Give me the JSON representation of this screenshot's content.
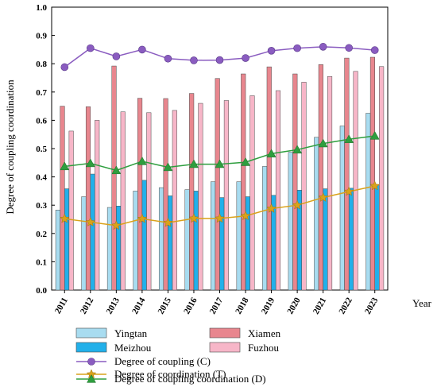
{
  "chart_data": {
    "type": "bar",
    "ylabel": "Degree of coupling coordination",
    "xlabel": "Year",
    "ylim": [
      0.0,
      1.0
    ],
    "yticks": [
      "0.0",
      "0.1",
      "0.2",
      "0.3",
      "0.4",
      "0.5",
      "0.6",
      "0.7",
      "0.8",
      "0.9",
      "1.0"
    ],
    "categories": [
      "2011",
      "2012",
      "2013",
      "2014",
      "2015",
      "2016",
      "2017",
      "2018",
      "2019",
      "2020",
      "2021",
      "2022",
      "2023"
    ],
    "bar_series": [
      {
        "name": "Yingtan",
        "color": "#a8dcf0",
        "values": [
          0.283,
          0.33,
          0.292,
          0.35,
          0.362,
          0.355,
          0.383,
          0.383,
          0.437,
          0.487,
          0.54,
          0.58,
          0.625
        ]
      },
      {
        "name": "Xiamen",
        "color": "#e8868e",
        "values": [
          0.65,
          0.648,
          0.792,
          0.678,
          0.677,
          0.695,
          0.748,
          0.764,
          0.789,
          0.764,
          0.797,
          0.82,
          0.823
        ]
      },
      {
        "name": "Meizhou",
        "color": "#22b0ea",
        "values": [
          0.358,
          0.41,
          0.297,
          0.388,
          0.333,
          0.35,
          0.327,
          0.33,
          0.335,
          0.353,
          0.358,
          0.36,
          0.372
        ]
      },
      {
        "name": "Fuzhou",
        "color": "#f7b6c8",
        "values": [
          0.562,
          0.6,
          0.63,
          0.627,
          0.635,
          0.66,
          0.67,
          0.687,
          0.705,
          0.735,
          0.755,
          0.773,
          0.79
        ]
      }
    ],
    "line_series": [
      {
        "name": "Degree of coupling (C)",
        "color": "#8a5cc0",
        "marker": "circle",
        "values": [
          0.788,
          0.855,
          0.826,
          0.85,
          0.818,
          0.812,
          0.813,
          0.82,
          0.846,
          0.855,
          0.86,
          0.856,
          0.848
        ]
      },
      {
        "name": "Degree of coordination (T)",
        "color": "#d9a21a",
        "marker": "star",
        "values": [
          0.252,
          0.24,
          0.228,
          0.252,
          0.238,
          0.253,
          0.253,
          0.262,
          0.288,
          0.3,
          0.327,
          0.348,
          0.368
        ]
      },
      {
        "name": "Degree of coupling coordination (D)",
        "color": "#2e9e3e",
        "marker": "triangle",
        "values": [
          0.437,
          0.448,
          0.423,
          0.455,
          0.434,
          0.445,
          0.445,
          0.452,
          0.482,
          0.496,
          0.518,
          0.533,
          0.545
        ]
      }
    ]
  }
}
